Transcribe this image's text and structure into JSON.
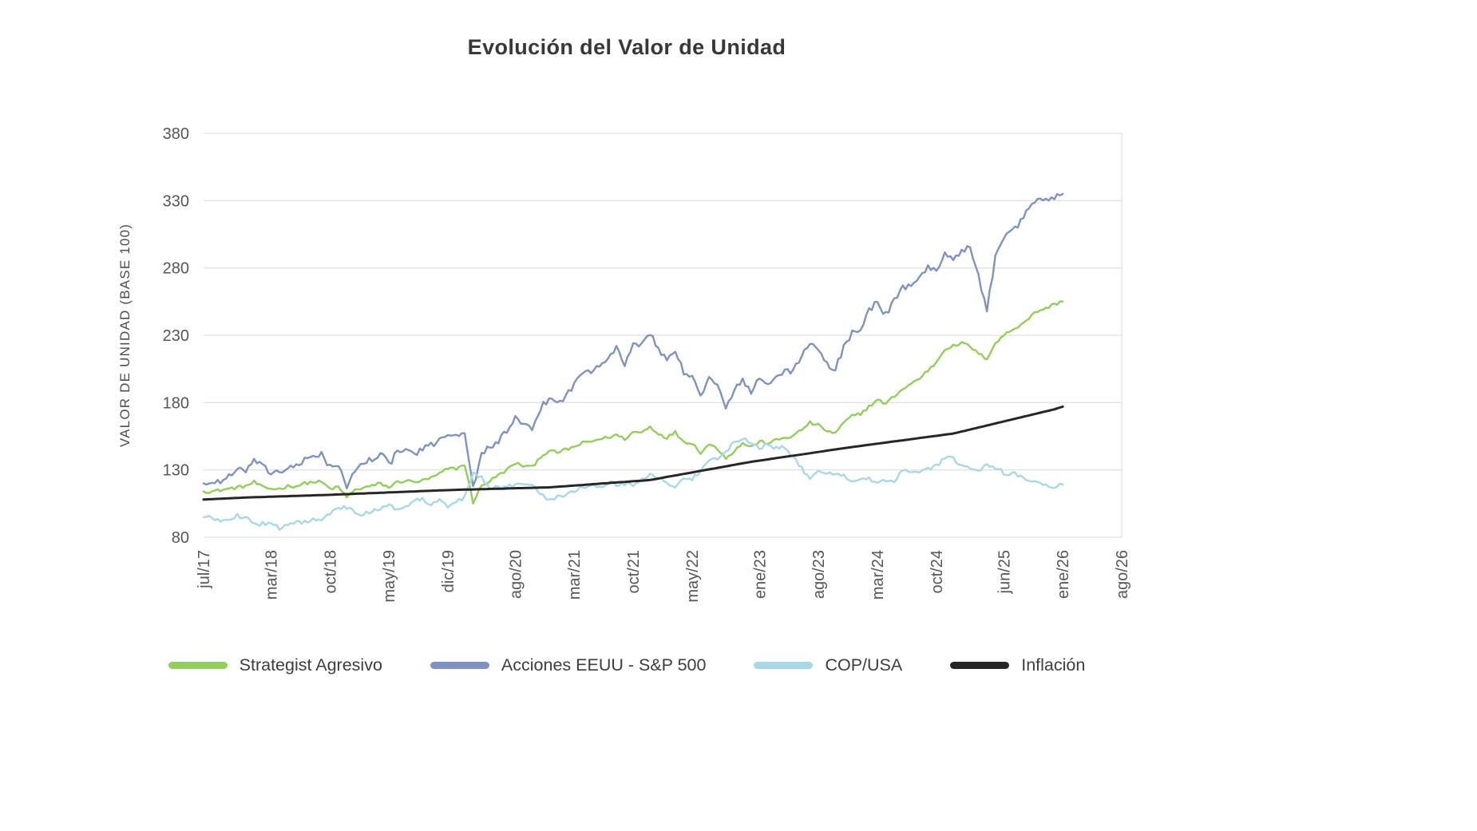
{
  "chart_data": {
    "type": "line",
    "title": "Evolución del Valor de Unidad",
    "ylabel": "VALOR DE UNIDAD (BASE 100)",
    "ylim": [
      80,
      380
    ],
    "yticks": [
      80,
      130,
      180,
      230,
      280,
      330,
      380
    ],
    "xlim": [
      0,
      109
    ],
    "x_description": "monthly values, month index 0 = jul/17",
    "xticks": [
      {
        "label": "jul/17",
        "m": 0
      },
      {
        "label": "mar/18",
        "m": 8
      },
      {
        "label": "oct/18",
        "m": 15
      },
      {
        "label": "may/19",
        "m": 22
      },
      {
        "label": "dic/19",
        "m": 29
      },
      {
        "label": "ago/20",
        "m": 37
      },
      {
        "label": "mar/21",
        "m": 44
      },
      {
        "label": "oct/21",
        "m": 51
      },
      {
        "label": "may/22",
        "m": 58
      },
      {
        "label": "ene/23",
        "m": 66
      },
      {
        "label": "ago/23",
        "m": 73
      },
      {
        "label": "mar/24",
        "m": 80
      },
      {
        "label": "oct/24",
        "m": 87
      },
      {
        "label": "jun/25",
        "m": 95
      },
      {
        "label": "ene/26",
        "m": 102
      },
      {
        "label": "ago/26",
        "m": 109
      }
    ],
    "grid": "horizontal-only",
    "legend_position": "bottom",
    "colors": {
      "background": "#ffffff",
      "gridline": "#d8d8d8",
      "axis_text": "#565656",
      "title_text": "#383838",
      "legend_text": "#3d3d3d"
    },
    "series": [
      {
        "name": "Strategist Agresivo",
        "color": "#92cf5a",
        "width": 2.4,
        "noise": 1.2,
        "values": [
          114,
          114,
          115,
          116,
          117,
          118,
          121,
          117,
          116,
          116,
          118,
          118,
          120,
          121,
          121,
          116,
          117,
          110,
          115,
          117,
          118,
          120,
          117,
          121,
          122,
          121,
          122,
          124,
          127,
          131,
          131,
          134,
          106,
          118,
          122,
          126,
          130,
          135,
          133,
          132,
          140,
          144,
          143,
          145,
          147,
          150,
          151,
          153,
          154,
          156,
          153,
          158,
          158,
          162,
          157,
          154,
          158,
          151,
          150,
          143,
          149,
          146,
          139,
          144,
          150,
          147,
          151,
          150,
          152,
          154,
          155,
          160,
          165,
          163,
          159,
          157,
          165,
          170,
          172,
          177,
          182,
          179,
          185,
          190,
          194,
          198,
          204,
          210,
          220,
          222,
          224,
          222,
          216,
          213,
          224,
          230,
          234,
          238,
          243,
          248,
          250,
          253,
          255
        ]
      },
      {
        "name": "Acciones EEUU - S&P 500",
        "color": "#7e93bf",
        "width": 2.4,
        "noise": 2.4,
        "values": [
          120,
          120,
          122,
          125,
          129,
          130,
          137,
          132,
          128,
          129,
          131,
          132,
          137,
          141,
          142,
          132,
          134,
          115,
          131,
          135,
          138,
          143,
          134,
          143,
          145,
          142,
          145,
          148,
          153,
          157,
          157,
          155,
          118,
          141,
          148,
          151,
          159,
          168,
          163,
          159,
          176,
          183,
          180,
          185,
          193,
          203,
          204,
          209,
          214,
          220,
          209,
          224,
          222,
          232,
          219,
          212,
          220,
          201,
          199,
          184,
          201,
          192,
          176,
          188,
          198,
          187,
          198,
          193,
          200,
          203,
          203,
          216,
          223,
          219,
          208,
          204,
          222,
          232,
          235,
          248,
          255,
          245,
          256,
          265,
          268,
          274,
          280,
          277,
          293,
          286,
          293,
          295,
          273,
          250,
          287,
          301,
          308,
          314,
          325,
          332,
          330,
          333,
          335
        ]
      },
      {
        "name": "COP/USA",
        "color": "#a8d8e6",
        "width": 2.4,
        "noise": 1.6,
        "values": [
          95,
          94,
          93,
          94,
          96,
          95,
          90,
          90,
          89,
          87,
          90,
          92,
          91,
          94,
          94,
          98,
          101,
          102,
          98,
          97,
          99,
          102,
          105,
          100,
          102,
          107,
          108,
          105,
          109,
          103,
          106,
          110,
          127,
          124,
          117,
          117,
          117,
          119,
          120,
          120,
          113,
          108,
          110,
          112,
          115,
          117,
          118,
          117,
          121,
          119,
          120,
          118,
          124,
          127,
          124,
          120,
          118,
          124,
          123,
          129,
          136,
          138,
          143,
          152,
          153,
          151,
          146,
          150,
          146,
          147,
          139,
          131,
          124,
          128,
          127,
          128,
          126,
          121,
          123,
          123,
          121,
          122,
          121,
          130,
          127,
          128,
          131,
          133,
          139,
          138,
          134,
          130,
          130,
          133,
          131,
          128,
          127,
          126,
          122,
          121,
          118,
          117,
          119
        ]
      },
      {
        "name": "Inflación",
        "color": "#262626",
        "width": 3,
        "noise": 0,
        "values": [
          108,
          108.3,
          108.6,
          108.9,
          109.2,
          109.5,
          109.7,
          109.9,
          110.1,
          110.3,
          110.5,
          110.7,
          110.9,
          111.1,
          111.3,
          111.5,
          111.8,
          112,
          112.3,
          112.5,
          112.8,
          113,
          113.3,
          113.5,
          113.8,
          114,
          114.3,
          114.5,
          114.8,
          115,
          115.2,
          115.4,
          115.5,
          115.7,
          115.9,
          116,
          116.2,
          116.4,
          116.5,
          116.7,
          116.9,
          117,
          117.5,
          117.9,
          118.4,
          118.8,
          119.3,
          119.8,
          120.2,
          120.7,
          121.1,
          121.6,
          122,
          122.5,
          123.6,
          124.8,
          125.9,
          127,
          128.1,
          129.3,
          130.4,
          131.5,
          132.6,
          133.8,
          134.9,
          136,
          136.9,
          137.8,
          138.8,
          139.7,
          140.6,
          141.5,
          142.4,
          143.3,
          144.3,
          145.2,
          146.1,
          147,
          147.8,
          148.7,
          149.5,
          150.3,
          151.2,
          152,
          152.8,
          153.7,
          154.5,
          155.3,
          156.2,
          157,
          158.5,
          160,
          161.5,
          163,
          164.5,
          166,
          167.5,
          169,
          170.5,
          172,
          173.5,
          175,
          177
        ]
      }
    ]
  }
}
